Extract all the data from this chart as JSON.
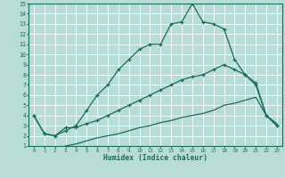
{
  "xlabel": "Humidex (Indice chaleur)",
  "xlim": [
    -0.5,
    23.5
  ],
  "ylim": [
    1,
    15
  ],
  "xticks": [
    0,
    1,
    2,
    3,
    4,
    5,
    6,
    7,
    8,
    9,
    10,
    11,
    12,
    13,
    14,
    15,
    16,
    17,
    18,
    19,
    20,
    21,
    22,
    23
  ],
  "yticks": [
    1,
    2,
    3,
    4,
    5,
    6,
    7,
    8,
    9,
    10,
    11,
    12,
    13,
    14,
    15
  ],
  "background_color": "#b8ddd8",
  "grid_color": "#ffffff",
  "line_color": "#1a6b5a",
  "line1_x": [
    0,
    1,
    2,
    3,
    4,
    5,
    6,
    7,
    8,
    9,
    10,
    11,
    12,
    13,
    14,
    15,
    16,
    17,
    18,
    19,
    20,
    21,
    22,
    23
  ],
  "line1_y": [
    4.0,
    2.2,
    2.0,
    2.5,
    3.0,
    4.5,
    6.0,
    7.0,
    8.5,
    9.5,
    10.5,
    11.0,
    11.0,
    13.0,
    13.2,
    15.0,
    13.2,
    13.0,
    12.5,
    9.5,
    8.0,
    7.2,
    4.0,
    3.0
  ],
  "line2_x": [
    0,
    1,
    2,
    3,
    4,
    5,
    6,
    7,
    8,
    9,
    10,
    11,
    12,
    13,
    14,
    15,
    16,
    17,
    18,
    19,
    20,
    21,
    22,
    23
  ],
  "line2_y": [
    4.0,
    2.2,
    2.0,
    2.8,
    2.8,
    3.2,
    3.5,
    4.0,
    4.5,
    5.0,
    5.5,
    6.0,
    6.5,
    7.0,
    7.5,
    7.8,
    8.0,
    8.5,
    9.0,
    8.5,
    8.0,
    7.0,
    4.0,
    3.0
  ],
  "line3_x": [
    3,
    4,
    5,
    6,
    7,
    8,
    9,
    10,
    11,
    12,
    13,
    14,
    15,
    16,
    17,
    18,
    19,
    20,
    21,
    22,
    23
  ],
  "line3_y": [
    1.0,
    1.2,
    1.5,
    1.8,
    2.0,
    2.2,
    2.5,
    2.8,
    3.0,
    3.3,
    3.5,
    3.8,
    4.0,
    4.2,
    4.5,
    5.0,
    5.2,
    5.5,
    5.8,
    4.0,
    3.2
  ]
}
